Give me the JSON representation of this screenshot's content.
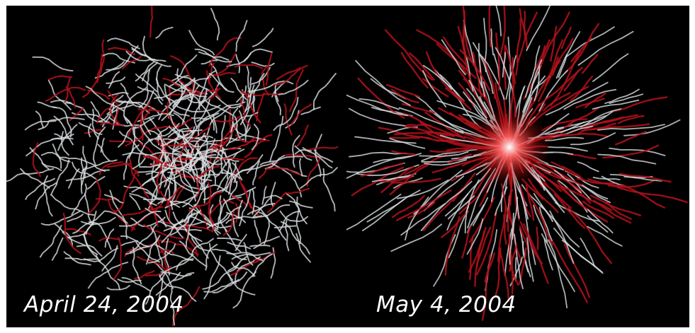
{
  "panels": [
    {
      "caption": "April 24, 2004",
      "description": "diffuse network of branching white and red filaments"
    },
    {
      "caption": "May 4, 2004",
      "description": "radial network of white and red filaments converging on a bright red-white center"
    }
  ],
  "colors": {
    "background": "#000000",
    "filament_white": "#d9dde0",
    "filament_red": "#b3121b",
    "core_glow": "#ff2a2a",
    "caption": "#ffffff"
  }
}
